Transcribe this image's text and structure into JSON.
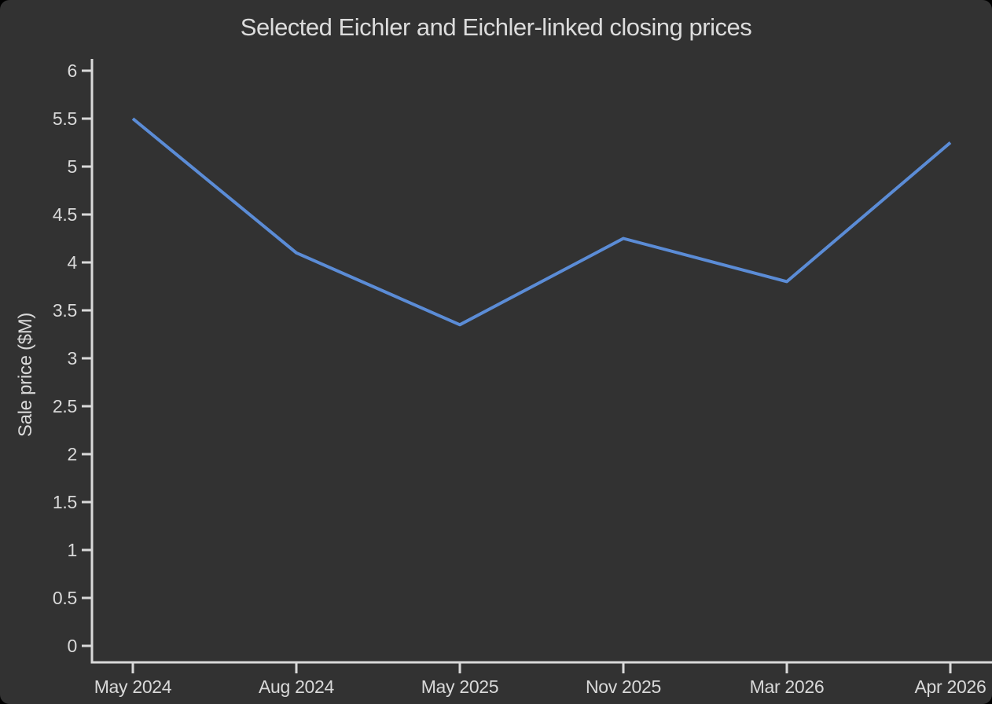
{
  "page": {
    "outer_background": "#000000",
    "canvas_background": "#323232"
  },
  "chart_data": {
    "type": "line",
    "title": "Selected Eichler and Eichler-linked closing prices",
    "xlabel": "",
    "ylabel": "Sale price ($M)",
    "categories": [
      "May 2024",
      "Aug 2024",
      "May 2025",
      "Nov 2025",
      "Mar 2026",
      "Apr 2026"
    ],
    "series": [
      {
        "name": "Sale price",
        "values": [
          5.5,
          4.1,
          3.35,
          4.25,
          3.8,
          5.25
        ]
      }
    ],
    "ylim": [
      0,
      6
    ],
    "ytick_step": 0.5,
    "ytick_labels": [
      "0",
      "0.5",
      "1",
      "1.5",
      "2",
      "2.5",
      "3",
      "3.5",
      "4",
      "4.5",
      "5",
      "5.5",
      "6"
    ],
    "grid": false,
    "legend_position": "none",
    "markers": false,
    "colors": {
      "line": "#5b8cd6",
      "axis": "#d9d9d9",
      "text": "#d9d9d9"
    }
  }
}
